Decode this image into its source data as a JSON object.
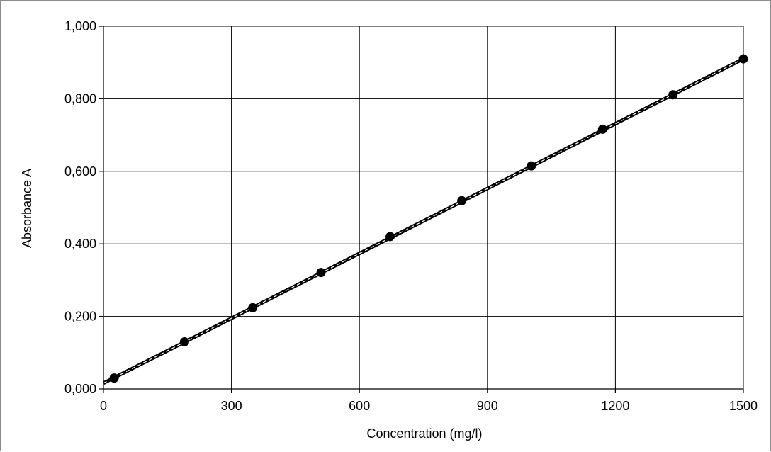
{
  "chart_data": {
    "type": "scatter",
    "title": "",
    "xlabel": "Concentration (mg/l)",
    "ylabel": "Absorbance A",
    "xlim": [
      0,
      1500
    ],
    "ylim": [
      0,
      1
    ],
    "x_ticks": [
      0,
      300,
      600,
      900,
      1200,
      1500
    ],
    "x_tick_labels": [
      "0",
      "300",
      "600",
      "900",
      "1200",
      "1500"
    ],
    "y_ticks": [
      0,
      0.2,
      0.4,
      0.6,
      0.8,
      1.0
    ],
    "y_tick_labels": [
      "0,000",
      "0,200",
      "0,400",
      "0,600",
      "0,800",
      "1,000"
    ],
    "grid": true,
    "legend": "none",
    "series": [
      {
        "marker": "circle",
        "color": "#000000",
        "points": [
          {
            "x": 25,
            "y": 0.03
          },
          {
            "x": 190,
            "y": 0.13
          },
          {
            "x": 350,
            "y": 0.224
          },
          {
            "x": 510,
            "y": 0.321
          },
          {
            "x": 672,
            "y": 0.42
          },
          {
            "x": 840,
            "y": 0.519
          },
          {
            "x": 1003,
            "y": 0.615
          },
          {
            "x": 1170,
            "y": 0.716
          },
          {
            "x": 1335,
            "y": 0.811
          },
          {
            "x": 1500,
            "y": 0.91
          }
        ]
      }
    ],
    "trendline": {
      "type": "linear",
      "style": "dashed",
      "color": "#000000",
      "x_range": [
        0,
        1500
      ],
      "y_range": [
        0.016,
        0.91
      ]
    }
  }
}
